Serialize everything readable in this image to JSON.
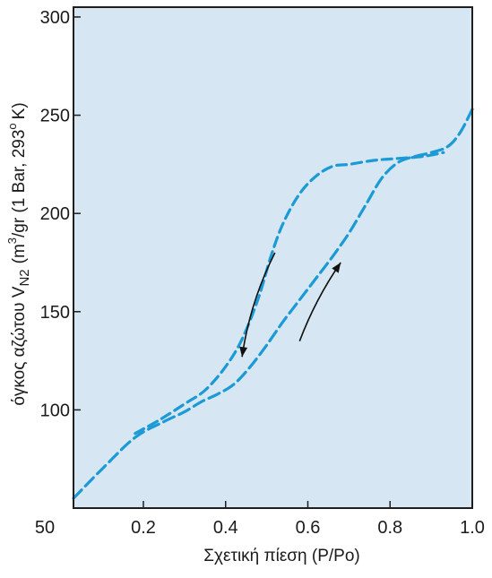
{
  "colors": {
    "plot_background": "#d6e7f3",
    "curve": "#1b9ad6",
    "frame": "#1f1f1f",
    "arrow": "#111111",
    "tick_label": "#1b1b1b"
  },
  "chart_data": {
    "type": "line",
    "title": "",
    "xlabel": "Σχετική πίεση (P/Po)",
    "ylabel": "όγκος αζώτου V",
    "ylabel_sub": "N2",
    "ylabel_tail": "/gr (1 Bar, 293",
    "ylabel_sup": "o",
    "ylabel_end": "K)",
    "ylabel_unit_main": "(m",
    "ylabel_unit_sup": "3",
    "xlim": [
      0.03,
      1.0
    ],
    "ylim": [
      50,
      305
    ],
    "x_ticks": [
      {
        "value": 0.2,
        "label": "0.2"
      },
      {
        "value": 0.4,
        "label": "0.4"
      },
      {
        "value": 0.6,
        "label": "0.6"
      },
      {
        "value": 0.8,
        "label": "0.8"
      },
      {
        "value": 1.0,
        "label": "1.0"
      }
    ],
    "origin_label": "50",
    "y_ticks": [
      {
        "value": 100,
        "label": "100"
      },
      {
        "value": 150,
        "label": "150"
      },
      {
        "value": 200,
        "label": "200"
      },
      {
        "value": 250,
        "label": "250"
      },
      {
        "value": 300,
        "label": "300"
      }
    ],
    "grid": false,
    "legend": "none",
    "series": [
      {
        "style": "dashed",
        "values_note": "",
        "x": [
          0.03,
          0.1,
          0.18,
          0.25,
          0.3,
          0.34,
          0.38,
          0.42,
          0.46,
          0.5,
          0.54,
          0.58,
          0.62,
          0.66,
          0.7,
          0.74,
          0.78,
          0.82,
          0.86,
          0.9,
          0.94,
          0.97,
          1.0
        ],
        "y": [
          55,
          70,
          86,
          94,
          99,
          104,
          108,
          113,
          122,
          133,
          145,
          156,
          167,
          178,
          190,
          204,
          218,
          226,
          229,
          231,
          234,
          241,
          253
        ]
      },
      {
        "style": "dashed",
        "values_note": "",
        "x": [
          0.18,
          0.24,
          0.3,
          0.35,
          0.4,
          0.44,
          0.48,
          0.51,
          0.54,
          0.58,
          0.62,
          0.66,
          0.7,
          0.76,
          0.82,
          0.88,
          0.93
        ],
        "y": [
          88,
          95,
          103,
          110,
          122,
          136,
          157,
          178,
          195,
          210,
          219,
          224,
          225,
          227,
          228,
          229,
          231
        ]
      }
    ],
    "annotations": [
      {
        "kind": "arrow",
        "direction": "down",
        "from": [
          0.52,
          180
        ],
        "to": [
          0.44,
          127
        ]
      },
      {
        "kind": "arrow",
        "direction": "up",
        "from": [
          0.58,
          135
        ],
        "to": [
          0.68,
          175
        ]
      }
    ]
  }
}
